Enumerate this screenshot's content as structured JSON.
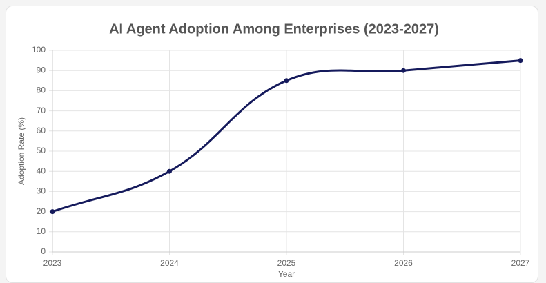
{
  "chart_data": {
    "type": "line",
    "title": "AI Agent Adoption Among Enterprises (2023-2027)",
    "x_label": "Year",
    "y_label": "Adoption Rate (%)",
    "categories": [
      "2023",
      "2024",
      "2025",
      "2026",
      "2027"
    ],
    "series": [
      {
        "name": "Adoption Rate (%)",
        "color": "#151a5c",
        "values": [
          20,
          40,
          85,
          90,
          95
        ]
      }
    ],
    "ylim": [
      0,
      100
    ],
    "yticks": [
      0,
      10,
      20,
      30,
      40,
      50,
      60,
      70,
      80,
      90,
      100
    ],
    "grid": true
  }
}
